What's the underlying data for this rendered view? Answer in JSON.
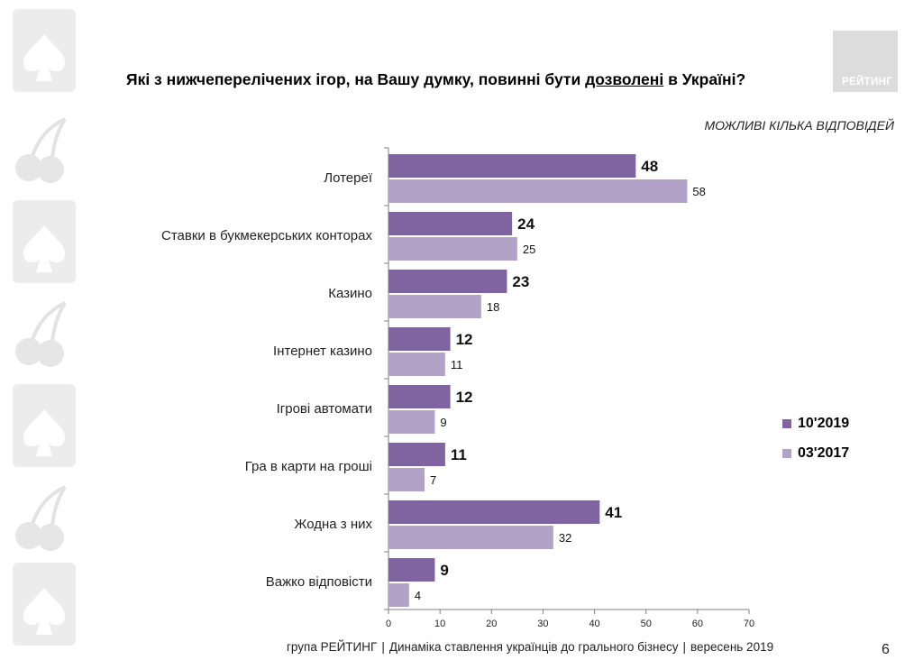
{
  "title": {
    "part1": "Які з нижчеперелічених ігор, на Вашу думку, повинні бути ",
    "underlined": "дозволені",
    "part2": " в Україні?"
  },
  "subtitle": "МОЖЛИВІ КІЛЬКА ВІДПОВІДЕЙ",
  "logo_text": "РЕЙТИНГ",
  "footer": {
    "org": "група РЕЙТИНГ",
    "study": "Динаміка ставлення українців до грального бізнесу",
    "date": "вересень 2019",
    "sep": "|"
  },
  "page_number": "6",
  "colors": {
    "series_2019": "#8064a2",
    "series_2017": "#b3a2c7",
    "axis": "#808080",
    "decor": "#e6e6e6"
  },
  "chart_data": {
    "type": "bar",
    "orientation": "horizontal",
    "categories": [
      "Лотереї",
      "Ставки в букмекерських конторах",
      "Казино",
      "Інтернет казино",
      "Ігрові автомати",
      "Гра в карти на гроші",
      "Жодна з них",
      "Важко відповісти"
    ],
    "series": [
      {
        "name": "10'2019",
        "values": [
          48,
          24,
          23,
          12,
          12,
          11,
          41,
          9
        ]
      },
      {
        "name": "03'2017",
        "values": [
          58,
          25,
          18,
          11,
          9,
          7,
          32,
          4
        ]
      }
    ],
    "xlim": [
      0,
      70
    ],
    "xticks": [
      0,
      10,
      20,
      30,
      40,
      50,
      60,
      70
    ],
    "legend": "right"
  }
}
